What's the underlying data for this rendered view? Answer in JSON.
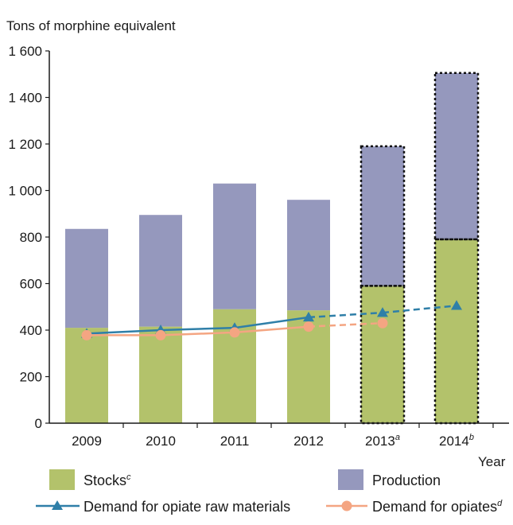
{
  "chart_data": {
    "type": "bar",
    "ylabel": "Tons of morphine equivalent",
    "xlabel": "Year",
    "ylim": [
      0,
      1600
    ],
    "yticks": [
      0,
      200,
      400,
      600,
      800,
      1000,
      1200,
      1400,
      1600
    ],
    "ytick_labels": [
      "0",
      "200",
      "400",
      "600",
      "800",
      "1 000",
      "1 200",
      "1 400",
      "1 600"
    ],
    "categories": [
      {
        "label": "2009",
        "sup": ""
      },
      {
        "label": "2010",
        "sup": ""
      },
      {
        "label": "2011",
        "sup": ""
      },
      {
        "label": "2012",
        "sup": ""
      },
      {
        "label": "2013",
        "sup": "a"
      },
      {
        "label": "2014",
        "sup": "b"
      }
    ],
    "stacked_series": [
      {
        "name": "Stocks",
        "sup": "c",
        "color": "#b3c26b",
        "values": [
          410,
          415,
          490,
          485,
          590,
          790
        ]
      },
      {
        "name": "Production",
        "sup": "",
        "color": "#9598bd",
        "values": [
          425,
          480,
          540,
          475,
          600,
          715
        ]
      }
    ],
    "projected_categories": [
      "2013",
      "2014"
    ],
    "line_series": [
      {
        "name": "Demand for opiate raw materials",
        "sup": "",
        "color": "#2f7fa8",
        "marker": "triangle",
        "values": [
          385,
          400,
          410,
          455,
          475,
          505
        ],
        "dashed_from_index": 3
      },
      {
        "name": "Demand for opiates",
        "sup": "d",
        "color": "#f4a582",
        "marker": "circle",
        "values": [
          378,
          378,
          390,
          415,
          430,
          null
        ],
        "dashed_from_index": 3
      }
    ]
  }
}
